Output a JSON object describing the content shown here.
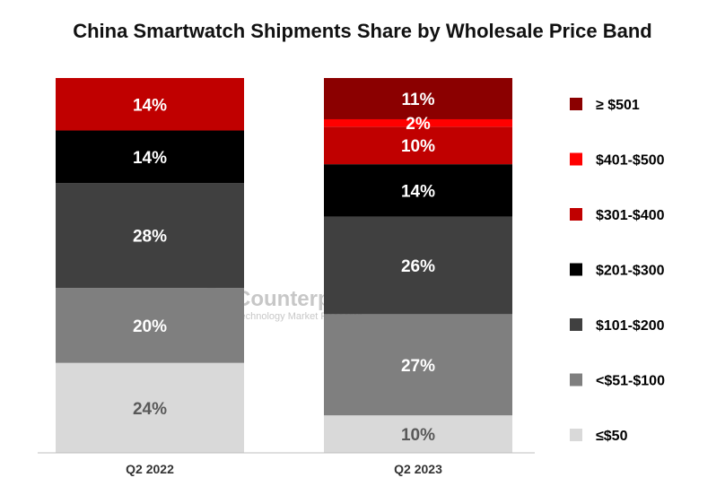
{
  "watermark": {
    "brand": "Counterpoint",
    "tagline": "Technology Market Research"
  },
  "chart_data": {
    "type": "bar",
    "stacked": true,
    "title": "China Smartwatch Shipments Share by Wholesale Price Band",
    "xlabel": "",
    "ylabel": "",
    "ylim": [
      0,
      100
    ],
    "grid": false,
    "legend_position": "right",
    "categories": [
      "Q2 2022",
      "Q2 2023"
    ],
    "series": [
      {
        "name": "≤$50",
        "color": "#d9d9d9",
        "label_color": "#595959",
        "values": [
          24,
          10
        ]
      },
      {
        "name": "<$51-$100",
        "color": "#7f7f7f",
        "label_color": "#ffffff",
        "values": [
          20,
          27
        ]
      },
      {
        "name": "$101-$200",
        "color": "#404040",
        "label_color": "#ffffff",
        "values": [
          28,
          26
        ]
      },
      {
        "name": "$201-$300",
        "color": "#000000",
        "label_color": "#ffffff",
        "values": [
          14,
          14
        ]
      },
      {
        "name": "$301-$400",
        "color": "#c00000",
        "label_color": "#ffffff",
        "values": [
          14,
          10
        ]
      },
      {
        "name": "$401-$500",
        "color": "#ff0000",
        "label_color": "#ffffff",
        "values": [
          0,
          2
        ]
      },
      {
        "name": "≥ $501",
        "color": "#8b0000",
        "label_color": "#ffffff",
        "values": [
          0,
          11
        ]
      }
    ],
    "data_labels": [
      [
        "24%",
        "20%",
        "28%",
        "14%",
        "14%",
        "",
        ""
      ],
      [
        "10%",
        "27%",
        "26%",
        "14%",
        "10%",
        "2%",
        "11%"
      ]
    ]
  }
}
